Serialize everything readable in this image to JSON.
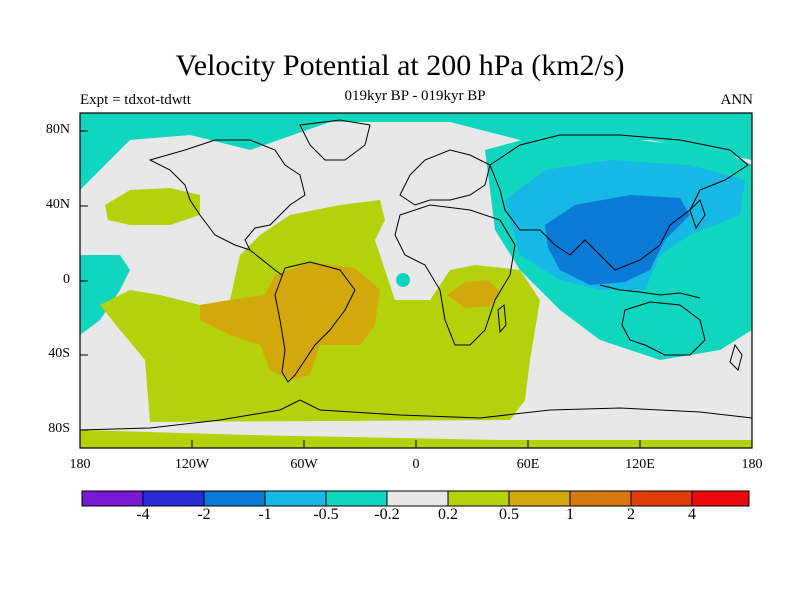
{
  "header": {
    "title": "Velocity Potential at 200 hPa (km2/s)",
    "subtitle": "019kyr BP - 019kyr BP",
    "left_label": "Expt = tdxot-tdwtt",
    "right_label": "ANN"
  },
  "axes": {
    "lat_labels": [
      "80N",
      "40N",
      "0",
      "40S",
      "80S"
    ],
    "lon_labels": [
      "180",
      "120W",
      "60W",
      "0",
      "60E",
      "120E",
      "180"
    ]
  },
  "colorbar": {
    "labels": [
      "-4",
      "-2",
      "-1",
      "-0.5",
      "-0.2",
      "0.2",
      "0.5",
      "1",
      "2",
      "4"
    ],
    "colors": [
      "#7a19d4",
      "#2a2ad6",
      "#0a7ad6",
      "#16b8e6",
      "#10d6c0",
      "#e8e8e8",
      "#b4d20a",
      "#d2a80a",
      "#d87812",
      "#e23c0a",
      "#ec0a0a"
    ]
  },
  "map_colors": {
    "ocean_neutral": "#e8e8e8",
    "teal": "#10d6c0",
    "light_blue": "#16b8e6",
    "blue": "#0a7ad6",
    "yellow_green": "#b4d20a",
    "gold": "#d2a80a"
  }
}
